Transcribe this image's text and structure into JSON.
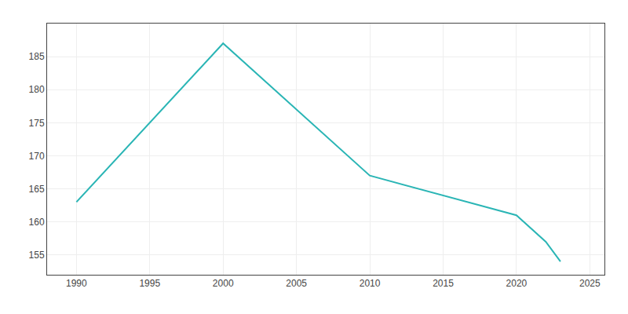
{
  "chart_data": {
    "type": "line",
    "x": [
      1990,
      2000,
      2010,
      2020,
      2022,
      2023
    ],
    "values": [
      163,
      187,
      167,
      161,
      157,
      154
    ],
    "color": "#2ab5b5",
    "xlim": [
      1988,
      2026
    ],
    "ylim": [
      152,
      190
    ],
    "xticks": [
      1990,
      1995,
      2000,
      2005,
      2010,
      2015,
      2020,
      2025
    ],
    "yticks": [
      155,
      160,
      165,
      170,
      175,
      180,
      185
    ],
    "grid": true
  }
}
